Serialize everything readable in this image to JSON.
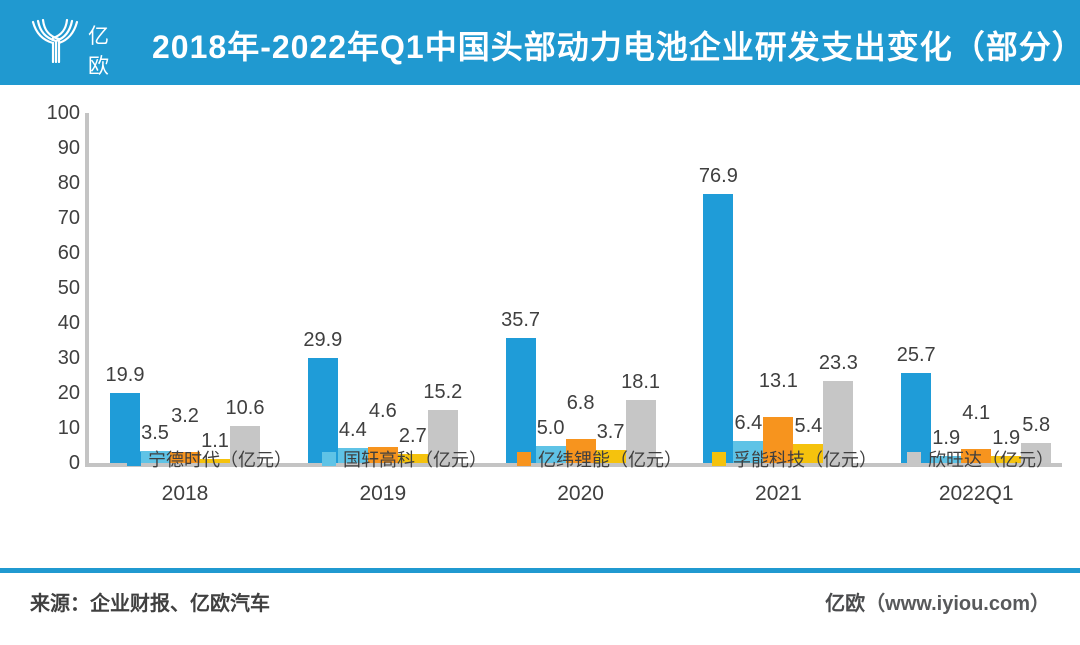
{
  "header": {
    "logo_text": "亿欧",
    "title": "2018年-2022年Q1中国头部动力电池企业研发支出变化（部分）"
  },
  "footer": {
    "source": "来源：企业财报、亿欧汽车",
    "brand": "亿欧",
    "site": "（www.iyiou.com）"
  },
  "colors": {
    "banner_blue": "#2099D0",
    "separator_blue": "#2099D0",
    "axis_gray": "#C4C4C4",
    "text_dark": "#3F3F3F"
  },
  "chart_data": {
    "type": "bar",
    "title": "2018年-2022年Q1中国头部动力电池企业研发支出变化（部分）",
    "categories": [
      "2018",
      "2019",
      "2020",
      "2021",
      "2022Q1"
    ],
    "series": [
      {
        "name": "宁德时代（亿元）",
        "color": "#1F9CD8",
        "values": [
          19.9,
          29.9,
          35.7,
          76.9,
          25.7
        ]
      },
      {
        "name": "国轩高科（亿元）",
        "color": "#5FC3E6",
        "values": [
          3.5,
          4.4,
          5.0,
          6.4,
          1.9
        ]
      },
      {
        "name": "亿纬锂能（亿元）",
        "color": "#F7941E",
        "values": [
          3.2,
          4.6,
          6.8,
          13.1,
          4.1
        ]
      },
      {
        "name": "孚能科技（亿元）",
        "color": "#F5C20D",
        "values": [
          1.1,
          2.7,
          3.7,
          5.4,
          1.9
        ]
      },
      {
        "name": "欣旺达（亿元）",
        "color": "#C6C6C6",
        "values": [
          10.6,
          15.2,
          18.1,
          23.3,
          5.8
        ]
      }
    ],
    "ylim": [
      0,
      100
    ],
    "ytick_step": 10,
    "grid": false,
    "legend_position": "bottom",
    "xlabel": "",
    "ylabel": ""
  }
}
